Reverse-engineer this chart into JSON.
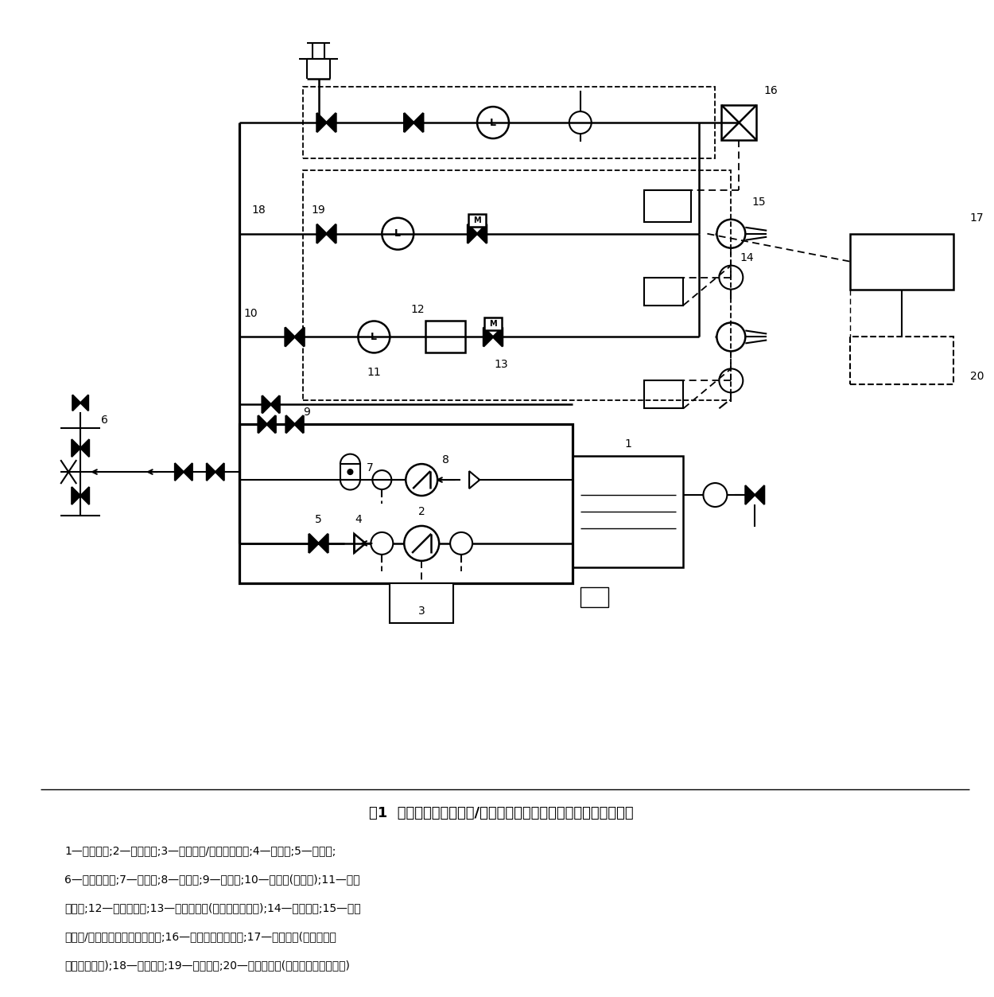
{
  "title": "图1  自动消防炮灭火系统/喷射型自动射流灭火系统基本组成示意图",
  "caption_lines": [
    "1—消防水池;2—消防水泵;3—消防水泵/稳压泵控制柜;4—止回阀;5—手动阀;",
    "6—水泵接合器;7—气压罐;8—稳压泵;9—泄压阀;10—检修阀(信号阀);11—水流",
    "指示器;12—控制模块箱;13—自动控制阀(电磁阀或电动阀);14—探测装置;15—自动",
    "消防炮/喷射型自动射流灭火装置;16—模拟末端试水装置;17—控制装置(控制主机、",
    "现场控制箱等);18—供水管网;19—供水支管;20—联动控制器(或自动报警系统主机)"
  ],
  "bg_color": "#ffffff"
}
